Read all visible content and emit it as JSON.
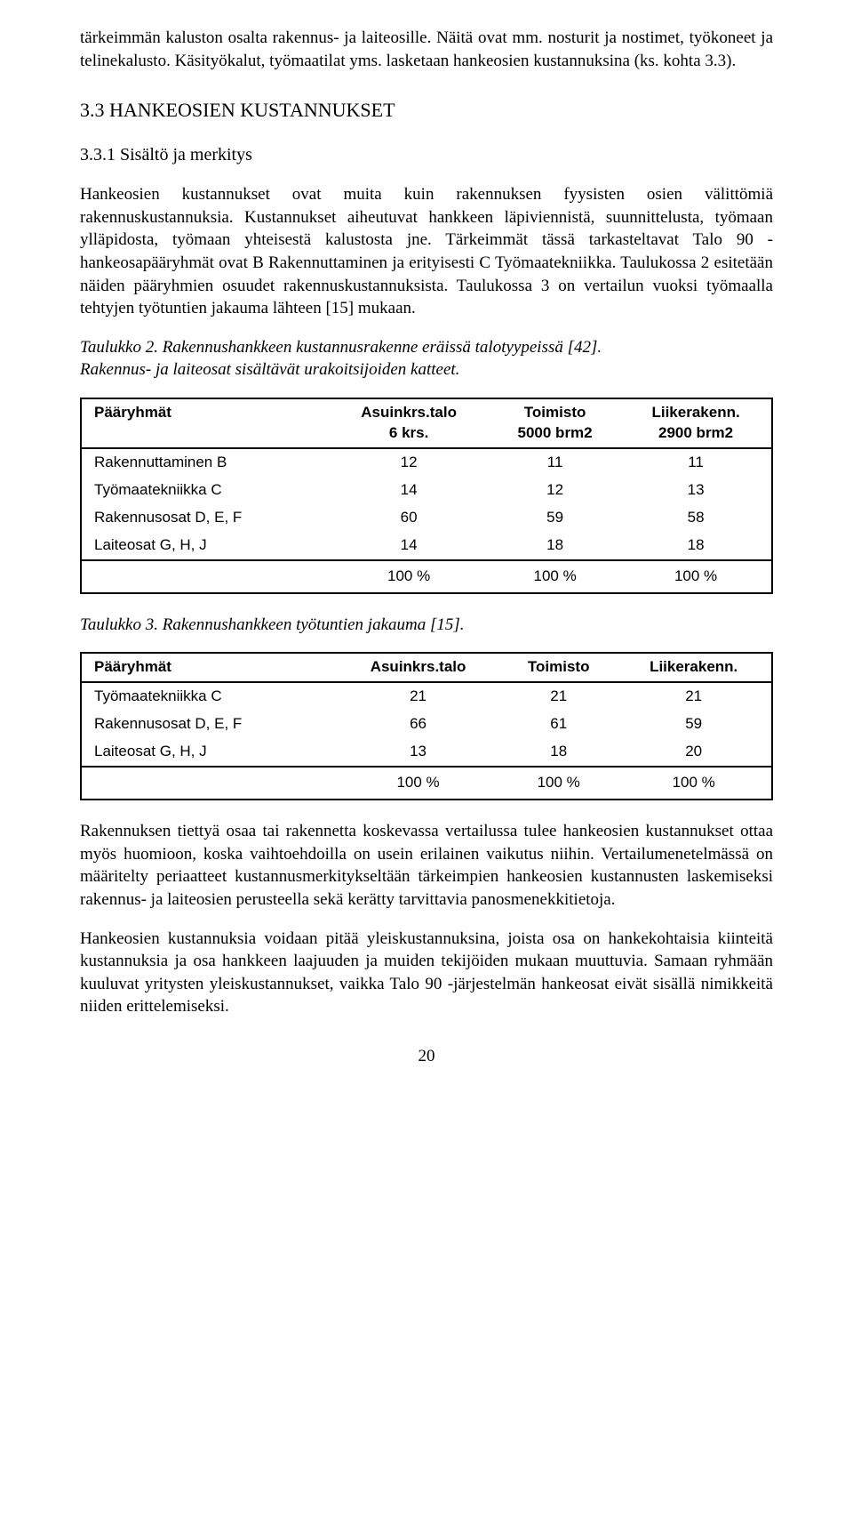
{
  "intro_paragraph": "tärkeimmän kaluston osalta rakennus- ja laiteosille. Näitä ovat mm. nosturit ja nostimet, työkoneet ja telinekalusto. Käsityökalut, työmaatilat yms. lasketaan hankeosien kustannuksina (ks. kohta 3.3).",
  "heading_33": "3.3  HANKEOSIEN KUSTANNUKSET",
  "heading_331": "3.3.1  Sisältö ja merkitys",
  "para_331": "Hankeosien kustannukset ovat muita kuin rakennuksen fyysisten osien välittömiä rakennuskustannuksia. Kustannukset aiheutuvat hankkeen läpiviennistä, suunnittelusta, työmaan ylläpidosta, työmaan yhteisestä kalustosta jne. Tärkeimmät tässä tarkasteltavat Talo 90 -hankeosapääryhmät ovat B Rakennuttaminen ja erityisesti C Työmaatekniikka. Taulukossa 2 esitetään näiden pääryhmien osuudet rakennuskustannuksista. Taulukossa 3 on vertailun vuoksi työmaalla tehtyjen työtuntien jakauma lähteen [15] mukaan.",
  "caption_t2_a": "Taulukko 2.  Rakennushankkeen kustannusrakenne eräissä talotyypeissä [42].",
  "caption_t2_b": "Rakennus- ja laiteosat sisältävät urakoitsijoiden katteet.",
  "caption_t3": "Taulukko 3.  Rakennushankkeen työtuntien jakauma [15].",
  "table2": {
    "headers": [
      "Pääryhmät",
      "Asuinkrs.talo\n6 krs.",
      "Toimisto\n5000 brm2",
      "Liikerakenn.\n2900 brm2"
    ],
    "rows": [
      [
        "Rakennuttaminen  B",
        "12",
        "11",
        "11"
      ],
      [
        "Työmaatekniikka  C",
        "14",
        "12",
        "13"
      ],
      [
        "Rakennusosat  D, E, F",
        "60",
        "59",
        "58"
      ],
      [
        "Laiteosat  G, H, J",
        "14",
        "18",
        "18"
      ]
    ],
    "totals": [
      "",
      "100 %",
      "100 %",
      "100 %"
    ]
  },
  "table3": {
    "headers": [
      "Pääryhmät",
      "Asuinkrs.talo",
      "Toimisto",
      "Liikerakenn."
    ],
    "rows": [
      [
        "Työmaatekniikka  C",
        "21",
        "21",
        "21"
      ],
      [
        "Rakennusosat  D, E, F",
        "66",
        "61",
        "59"
      ],
      [
        "Laiteosat  G, H, J",
        "13",
        "18",
        "20"
      ]
    ],
    "totals": [
      "",
      "100 %",
      "100 %",
      "100 %"
    ]
  },
  "para_after_tables_1": "Rakennuksen tiettyä osaa tai rakennetta koskevassa vertailussa tulee hankeosien kustannukset ottaa myös huomioon, koska vaihtoehdoilla on usein erilainen vaikutus niihin. Vertailumenetelmässä on määritelty periaatteet kustannusmerkitykseltään tärkeimpien hankeosien kustannusten laskemiseksi rakennus- ja laiteosien perusteella sekä kerätty tarvittavia panosmenekkitietoja.",
  "para_after_tables_2": "Hankeosien kustannuksia voidaan pitää yleiskustannuksina, joista osa on hankekohtaisia kiinteitä kustannuksia ja osa hankkeen laajuuden ja muiden tekijöiden mukaan muuttuvia. Samaan ryhmään kuuluvat yritysten yleiskustannukset, vaikka Talo 90 -järjestelmän hankeosat eivät sisällä nimikkeitä niiden erittelemiseksi.",
  "page_number": "20"
}
